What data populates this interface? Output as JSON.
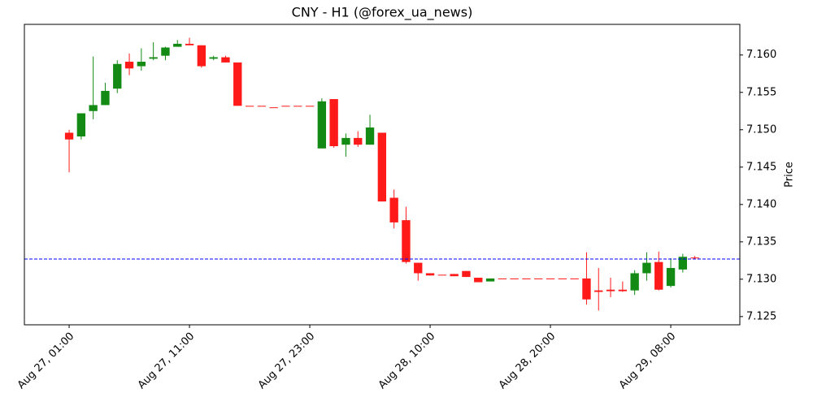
{
  "chart_data": {
    "type": "candlestick",
    "title": "CNY - H1 (@forex_ua_news)",
    "y_label": "Price",
    "categories": [
      "Aug 27, 01:00",
      null,
      null,
      null,
      null,
      null,
      null,
      null,
      null,
      null,
      "Aug 27, 11:00",
      null,
      null,
      null,
      null,
      null,
      null,
      null,
      null,
      null,
      "Aug 27, 23:00",
      null,
      null,
      null,
      null,
      null,
      null,
      null,
      null,
      null,
      "Aug 28, 10:00",
      null,
      null,
      null,
      null,
      null,
      null,
      null,
      null,
      null,
      "Aug 28, 20:00",
      null,
      null,
      null,
      null,
      null,
      null,
      null,
      null,
      null,
      "Aug 29, 08:00",
      null,
      null
    ],
    "open": [
      7.1496,
      7.1491,
      7.1525,
      7.1533,
      7.1555,
      7.1591,
      7.1585,
      7.1595,
      7.1599,
      7.1611,
      7.1615,
      7.1613,
      7.1595,
      7.1597,
      7.159,
      7.1532,
      7.1532,
      7.153,
      7.1532,
      7.1532,
      7.1532,
      7.1475,
      7.1541,
      7.148,
      7.1489,
      7.148,
      7.1496,
      7.1409,
      7.1379,
      7.1322,
      7.1308,
      7.1306,
      7.1307,
      7.1311,
      7.1302,
      7.1297,
      7.1301,
      7.1301,
      7.1301,
      7.1301,
      7.1301,
      7.1301,
      7.1301,
      7.1301,
      7.1285,
      7.1286,
      7.1286,
      7.1285,
      7.1308,
      7.1323,
      7.1291,
      7.1313,
      7.1329
    ],
    "high": [
      7.15,
      7.1522,
      7.1598,
      7.1563,
      7.1593,
      7.1602,
      7.1609,
      7.1617,
      7.1611,
      7.162,
      7.1623,
      7.1613,
      7.1599,
      7.1599,
      7.159,
      7.1532,
      7.1532,
      7.153,
      7.1532,
      7.1532,
      7.1532,
      7.1542,
      7.1541,
      7.1495,
      7.1498,
      7.152,
      7.1496,
      7.142,
      7.1397,
      7.1322,
      7.1308,
      7.1306,
      7.1307,
      7.1311,
      7.1302,
      7.1301,
      7.1301,
      7.1301,
      7.1301,
      7.1301,
      7.1301,
      7.1301,
      7.1301,
      7.1336,
      7.1315,
      7.1302,
      7.1297,
      7.1312,
      7.1336,
      7.1337,
      7.1328,
      7.1334,
      7.1331
    ],
    "low": [
      7.1443,
      7.1487,
      7.1514,
      7.1533,
      7.1549,
      7.1573,
      7.1579,
      7.1593,
      7.1593,
      7.1611,
      7.1613,
      7.1583,
      7.1593,
      7.159,
      7.1532,
      7.1532,
      7.1532,
      7.153,
      7.1532,
      7.1532,
      7.1532,
      7.1475,
      7.1476,
      7.1464,
      7.1477,
      7.148,
      7.1404,
      7.1368,
      7.1321,
      7.1298,
      7.1305,
      7.1306,
      7.1304,
      7.1303,
      7.1296,
      7.1297,
      7.1301,
      7.1301,
      7.1301,
      7.1301,
      7.1301,
      7.1301,
      7.1301,
      7.1266,
      7.1258,
      7.1276,
      7.1283,
      7.1279,
      7.1298,
      7.1285,
      7.1289,
      7.1309,
      7.1327
    ],
    "close": [
      7.1487,
      7.1522,
      7.1533,
      7.1552,
      7.1588,
      7.1582,
      7.1591,
      7.1597,
      7.161,
      7.1615,
      7.1613,
      7.1585,
      7.1597,
      7.159,
      7.1532,
      7.1532,
      7.1532,
      7.153,
      7.1532,
      7.1532,
      7.1532,
      7.1538,
      7.1478,
      7.1489,
      7.148,
      7.1503,
      7.1404,
      7.1376,
      7.1323,
      7.1308,
      7.1305,
      7.1306,
      7.1304,
      7.1303,
      7.1296,
      7.1301,
      7.1301,
      7.1301,
      7.1301,
      7.1301,
      7.1301,
      7.1301,
      7.1301,
      7.1273,
      7.1283,
      7.1284,
      7.1284,
      7.1308,
      7.1322,
      7.1286,
      7.1315,
      7.133,
      7.1328
    ],
    "up_color": "#138a13",
    "down_color": "#ff1a1a",
    "hline": {
      "value": 7.1327,
      "color": "#0000ff"
    },
    "xlim": [
      -3.72,
      55.74
    ],
    "ylim": [
      7.1239,
      7.1641
    ],
    "yticks": [
      7.125,
      {
        "value": 7.13,
        "label": "7.130"
      },
      7.135,
      {
        "value": 7.14,
        "label": "7.140"
      },
      7.145,
      {
        "value": 7.15,
        "label": "7.150"
      },
      7.155,
      {
        "value": 7.16,
        "label": "7.160"
      }
    ],
    "y_axis_side": "right"
  }
}
